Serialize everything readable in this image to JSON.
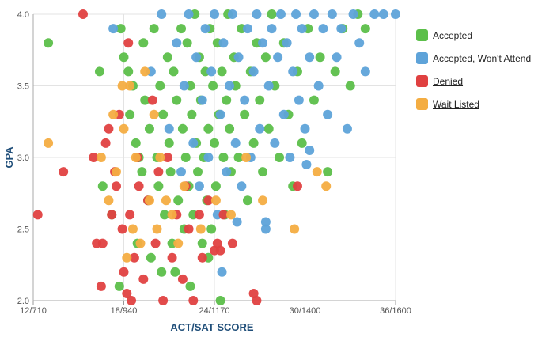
{
  "chart_data": {
    "type": "scatter",
    "xlabel": "ACT/SAT SCORE",
    "ylabel": "GPA",
    "xlim": [
      12,
      36
    ],
    "ylim": [
      2.0,
      4.0
    ],
    "x_ticks": [
      {
        "value": 12,
        "label": "12/710"
      },
      {
        "value": 18,
        "label": "18/940"
      },
      {
        "value": 24,
        "label": "24/1170"
      },
      {
        "value": 30,
        "label": "30/1400"
      },
      {
        "value": 36,
        "label": "36/1600"
      }
    ],
    "y_ticks": [
      {
        "value": 2.0,
        "label": "2.0"
      },
      {
        "value": 2.5,
        "label": "2.5"
      },
      {
        "value": 3.0,
        "label": "3.0"
      },
      {
        "value": 3.5,
        "label": "3.5"
      },
      {
        "value": 4.0,
        "label": "4.0"
      }
    ],
    "grid": true,
    "legend_position": "right",
    "series": [
      {
        "name": "Accepted",
        "color": "#5cbf4a",
        "points": [
          [
            13.0,
            3.8
          ],
          [
            16.4,
            3.6
          ],
          [
            16.6,
            2.8
          ],
          [
            17.7,
            2.1
          ],
          [
            17.8,
            3.9
          ],
          [
            18.0,
            3.7
          ],
          [
            18.3,
            3.6
          ],
          [
            18.4,
            3.3
          ],
          [
            18.6,
            3.5
          ],
          [
            18.8,
            3.1
          ],
          [
            18.9,
            2.4
          ],
          [
            19.0,
            3.0
          ],
          [
            19.2,
            2.9
          ],
          [
            19.3,
            3.8
          ],
          [
            19.4,
            3.4
          ],
          [
            19.6,
            2.7
          ],
          [
            19.7,
            3.2
          ],
          [
            19.8,
            2.3
          ],
          [
            20.0,
            3.9
          ],
          [
            20.2,
            3.0
          ],
          [
            20.3,
            2.8
          ],
          [
            20.4,
            3.5
          ],
          [
            20.6,
            3.3
          ],
          [
            20.7,
            2.6
          ],
          [
            20.9,
            3.7
          ],
          [
            21.0,
            3.1
          ],
          [
            21.1,
            2.9
          ],
          [
            21.3,
            3.6
          ],
          [
            21.4,
            2.2
          ],
          [
            21.5,
            3.4
          ],
          [
            21.6,
            2.7
          ],
          [
            21.8,
            3.9
          ],
          [
            21.9,
            3.2
          ],
          [
            22.0,
            2.5
          ],
          [
            22.1,
            3.0
          ],
          [
            22.2,
            3.8
          ],
          [
            22.3,
            2.8
          ],
          [
            22.4,
            3.5
          ],
          [
            22.5,
            3.3
          ],
          [
            22.6,
            2.6
          ],
          [
            22.7,
            4.0
          ],
          [
            22.8,
            3.1
          ],
          [
            22.9,
            2.9
          ],
          [
            23.0,
            3.7
          ],
          [
            23.1,
            3.4
          ],
          [
            23.2,
            2.4
          ],
          [
            23.3,
            3.0
          ],
          [
            23.4,
            3.6
          ],
          [
            23.5,
            2.7
          ],
          [
            23.6,
            3.2
          ],
          [
            23.7,
            3.9
          ],
          [
            23.8,
            2.5
          ],
          [
            23.9,
            3.5
          ],
          [
            24.0,
            3.1
          ],
          [
            24.1,
            2.8
          ],
          [
            24.2,
            3.8
          ],
          [
            24.3,
            3.3
          ],
          [
            24.4,
            2.0
          ],
          [
            24.5,
            3.6
          ],
          [
            24.6,
            3.0
          ],
          [
            24.7,
            2.6
          ],
          [
            24.8,
            3.4
          ],
          [
            24.9,
            4.0
          ],
          [
            25.0,
            3.2
          ],
          [
            25.1,
            2.9
          ],
          [
            25.3,
            3.7
          ],
          [
            25.4,
            3.5
          ],
          [
            25.6,
            3.0
          ],
          [
            25.8,
            3.9
          ],
          [
            26.0,
            3.3
          ],
          [
            26.2,
            2.7
          ],
          [
            26.4,
            3.6
          ],
          [
            26.6,
            3.1
          ],
          [
            26.8,
            3.8
          ],
          [
            27.0,
            3.4
          ],
          [
            27.2,
            2.9
          ],
          [
            27.4,
            3.7
          ],
          [
            27.6,
            3.2
          ],
          [
            27.8,
            4.0
          ],
          [
            28.0,
            3.5
          ],
          [
            28.3,
            3.0
          ],
          [
            28.6,
            3.8
          ],
          [
            28.9,
            3.3
          ],
          [
            29.2,
            2.8
          ],
          [
            29.5,
            3.6
          ],
          [
            29.8,
            3.1
          ],
          [
            30.2,
            3.9
          ],
          [
            30.6,
            3.4
          ],
          [
            31.0,
            3.7
          ],
          [
            31.5,
            2.9
          ],
          [
            32.0,
            3.6
          ],
          [
            32.5,
            3.9
          ],
          [
            33.0,
            3.5
          ],
          [
            33.5,
            4.0
          ],
          [
            34.0,
            3.9
          ],
          [
            20.5,
            2.2
          ],
          [
            21.2,
            2.4
          ],
          [
            22.4,
            2.1
          ],
          [
            23.6,
            2.3
          ],
          [
            17.2,
            2.6
          ]
        ]
      },
      {
        "name": "Accepted, Won't Attend",
        "color": "#5ea3d9",
        "points": [
          [
            17.3,
            3.9
          ],
          [
            19.8,
            3.6
          ],
          [
            20.5,
            4.0
          ],
          [
            21.0,
            3.2
          ],
          [
            21.5,
            3.8
          ],
          [
            21.8,
            2.9
          ],
          [
            22.0,
            3.5
          ],
          [
            22.3,
            4.0
          ],
          [
            22.6,
            3.1
          ],
          [
            22.8,
            3.7
          ],
          [
            23.0,
            2.8
          ],
          [
            23.2,
            3.4
          ],
          [
            23.4,
            3.9
          ],
          [
            23.6,
            3.0
          ],
          [
            23.8,
            3.6
          ],
          [
            24.0,
            4.0
          ],
          [
            24.2,
            2.6
          ],
          [
            24.4,
            3.3
          ],
          [
            24.6,
            3.8
          ],
          [
            24.8,
            2.9
          ],
          [
            25.0,
            3.5
          ],
          [
            25.2,
            4.0
          ],
          [
            25.4,
            3.1
          ],
          [
            25.6,
            3.7
          ],
          [
            25.8,
            2.8
          ],
          [
            26.0,
            3.4
          ],
          [
            26.2,
            3.9
          ],
          [
            26.4,
            3.0
          ],
          [
            26.6,
            3.6
          ],
          [
            26.8,
            4.0
          ],
          [
            27.0,
            3.2
          ],
          [
            27.2,
            3.8
          ],
          [
            27.4,
            2.5
          ],
          [
            27.6,
            3.5
          ],
          [
            27.8,
            3.9
          ],
          [
            28.0,
            3.1
          ],
          [
            28.2,
            3.7
          ],
          [
            28.4,
            4.0
          ],
          [
            28.6,
            3.3
          ],
          [
            28.8,
            3.8
          ],
          [
            29.0,
            3.0
          ],
          [
            29.2,
            3.6
          ],
          [
            29.4,
            4.0
          ],
          [
            29.6,
            3.4
          ],
          [
            29.8,
            3.9
          ],
          [
            30.0,
            3.2
          ],
          [
            30.3,
            3.7
          ],
          [
            30.6,
            4.0
          ],
          [
            30.9,
            3.5
          ],
          [
            31.2,
            3.9
          ],
          [
            31.5,
            3.3
          ],
          [
            31.8,
            4.0
          ],
          [
            32.1,
            3.7
          ],
          [
            32.4,
            3.9
          ],
          [
            32.8,
            3.2
          ],
          [
            33.2,
            4.0
          ],
          [
            33.6,
            3.8
          ],
          [
            34.0,
            3.6
          ],
          [
            34.6,
            4.0
          ],
          [
            35.2,
            4.0
          ],
          [
            36.0,
            4.0
          ],
          [
            30.1,
            2.95
          ],
          [
            30.3,
            3.05
          ],
          [
            24.5,
            2.2
          ],
          [
            25.5,
            2.55
          ],
          [
            27.4,
            2.55
          ]
        ]
      },
      {
        "name": "Denied",
        "color": "#e04141",
        "points": [
          [
            12.3,
            2.6
          ],
          [
            14.0,
            2.9
          ],
          [
            15.3,
            4.0
          ],
          [
            16.0,
            3.0
          ],
          [
            16.2,
            2.4
          ],
          [
            16.6,
            2.4
          ],
          [
            16.8,
            3.1
          ],
          [
            17.0,
            3.2
          ],
          [
            17.2,
            2.6
          ],
          [
            17.4,
            2.9
          ],
          [
            17.5,
            2.8
          ],
          [
            17.7,
            3.3
          ],
          [
            17.9,
            2.5
          ],
          [
            18.0,
            2.2
          ],
          [
            18.2,
            2.05
          ],
          [
            18.3,
            3.8
          ],
          [
            18.4,
            2.6
          ],
          [
            18.5,
            2.0
          ],
          [
            18.7,
            2.3
          ],
          [
            19.0,
            2.8
          ],
          [
            19.3,
            2.15
          ],
          [
            19.6,
            2.7
          ],
          [
            19.9,
            3.4
          ],
          [
            20.1,
            2.4
          ],
          [
            20.3,
            2.9
          ],
          [
            20.6,
            2.0
          ],
          [
            20.9,
            3.0
          ],
          [
            21.2,
            2.3
          ],
          [
            21.5,
            2.6
          ],
          [
            21.9,
            2.15
          ],
          [
            22.1,
            2.8
          ],
          [
            22.3,
            2.5
          ],
          [
            22.6,
            2.0
          ],
          [
            23.0,
            2.6
          ],
          [
            23.2,
            2.3
          ],
          [
            23.6,
            2.7
          ],
          [
            24.0,
            2.35
          ],
          [
            24.2,
            2.4
          ],
          [
            24.4,
            2.35
          ],
          [
            24.6,
            2.6
          ],
          [
            25.2,
            2.4
          ],
          [
            26.6,
            2.05
          ],
          [
            26.8,
            2.0
          ],
          [
            29.5,
            2.8
          ],
          [
            18.9,
            3.0
          ],
          [
            16.5,
            2.1
          ]
        ]
      },
      {
        "name": "Wait Listed",
        "color": "#f4ad42",
        "points": [
          [
            13.0,
            3.1
          ],
          [
            16.5,
            3.0
          ],
          [
            17.0,
            2.7
          ],
          [
            17.3,
            3.3
          ],
          [
            17.5,
            2.9
          ],
          [
            17.9,
            3.5
          ],
          [
            18.0,
            3.2
          ],
          [
            18.2,
            2.3
          ],
          [
            18.4,
            3.5
          ],
          [
            18.6,
            2.5
          ],
          [
            18.8,
            3.0
          ],
          [
            19.1,
            2.4
          ],
          [
            19.4,
            3.6
          ],
          [
            19.7,
            2.7
          ],
          [
            20.0,
            3.3
          ],
          [
            20.2,
            2.5
          ],
          [
            20.4,
            3.0
          ],
          [
            20.8,
            2.7
          ],
          [
            21.2,
            2.6
          ],
          [
            21.6,
            2.4
          ],
          [
            22.0,
            2.8
          ],
          [
            23.1,
            2.5
          ],
          [
            24.1,
            2.7
          ],
          [
            25.1,
            2.6
          ],
          [
            26.1,
            3.0
          ],
          [
            27.2,
            2.7
          ],
          [
            29.3,
            2.5
          ],
          [
            30.8,
            2.9
          ],
          [
            31.4,
            2.8
          ]
        ]
      }
    ]
  }
}
